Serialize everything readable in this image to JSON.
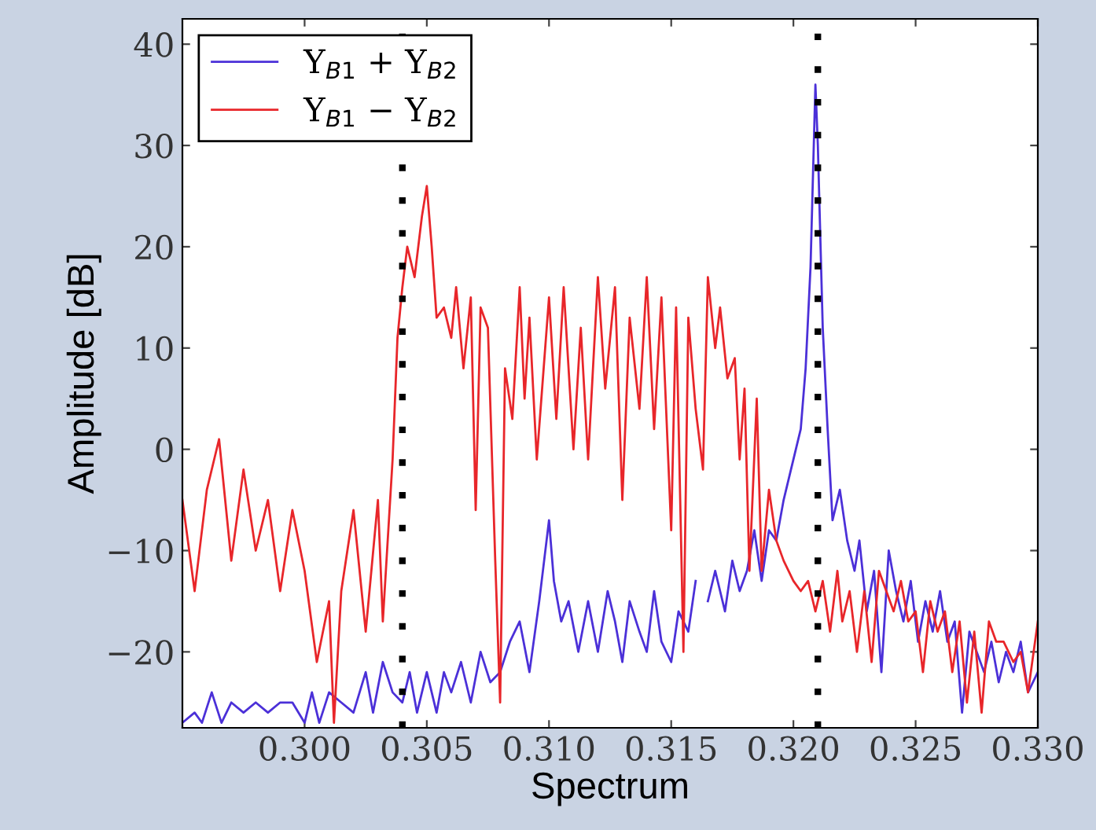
{
  "chart_data": {
    "type": "line",
    "xlabel": "Spectrum",
    "ylabel": "Amplitude [dB]",
    "xlim": [
      0.295,
      0.33
    ],
    "ylim": [
      -27.5,
      42.5
    ],
    "xticks": [
      {
        "value": 0.3,
        "label": "0.300"
      },
      {
        "value": 0.305,
        "label": "0.305"
      },
      {
        "value": 0.31,
        "label": "0.310"
      },
      {
        "value": 0.315,
        "label": "0.315"
      },
      {
        "value": 0.32,
        "label": "0.320"
      },
      {
        "value": 0.325,
        "label": "0.325"
      },
      {
        "value": 0.33,
        "label": "0.330"
      }
    ],
    "yticks": [
      {
        "value": -20,
        "label": "−20"
      },
      {
        "value": -10,
        "label": "−10"
      },
      0,
      10,
      20,
      30,
      40
    ],
    "legend": "top left",
    "grid": false,
    "ref_lines": [
      {
        "axis": "x",
        "value": 0.304,
        "color": "#000000",
        "line_style": "dotted"
      },
      {
        "axis": "x",
        "value": 0.321,
        "color": "#000000",
        "line_style": "dotted"
      }
    ],
    "series": [
      {
        "name": "Y$_{B1}$ + Y$_{B2}$",
        "color": "#4b30d8",
        "x": [
          0.295,
          0.2955,
          0.2958,
          0.2962,
          0.2966,
          0.297,
          0.2975,
          0.298,
          0.2985,
          0.299,
          0.2995,
          0.3,
          0.3003,
          0.3006,
          0.301,
          0.3015,
          0.302,
          0.3025,
          0.3028,
          0.3032,
          0.3036,
          0.304,
          0.3043,
          0.3046,
          0.305,
          0.3054,
          0.3057,
          0.306,
          0.3064,
          0.3068,
          0.3072,
          0.3076,
          0.308,
          0.3084,
          0.3088,
          0.3092,
          0.3096,
          0.3098,
          0.31,
          0.3102,
          0.3105,
          0.3108,
          0.3112,
          0.3116,
          0.312,
          0.3124,
          0.3127,
          0.313,
          0.3133,
          0.3137,
          0.314,
          0.3143,
          0.3146,
          0.315,
          0.3153,
          0.3157,
          0.316,
          0.3163,
          0.3165,
          0.3168,
          0.3172,
          0.3175,
          0.3178,
          0.3181,
          0.3184,
          0.3187,
          0.319,
          0.3193,
          0.3196,
          0.3199,
          0.3201,
          0.3203,
          0.3205,
          0.3207,
          0.3209,
          0.321,
          0.3212,
          0.3214,
          0.3216,
          0.3219,
          0.3222,
          0.3225,
          0.3227,
          0.323,
          0.3233,
          0.3236,
          0.3239,
          0.3242,
          0.3245,
          0.3248,
          0.3251,
          0.3254,
          0.3257,
          0.326,
          0.3263,
          0.3266,
          0.3269,
          0.3272,
          0.3275,
          0.3278,
          0.3281,
          0.3284,
          0.3287,
          0.329,
          0.3293,
          0.3296,
          0.33
        ],
        "values": [
          -27,
          -26,
          -27,
          -24,
          -27,
          -25,
          -26,
          -25,
          -26,
          -25,
          -25,
          -27,
          -24,
          -27,
          -24,
          -25,
          -26,
          -22,
          -26,
          -21,
          -24,
          -25,
          -22,
          -26,
          -22,
          -26,
          -22,
          -24,
          -21,
          -25,
          -20,
          -23,
          -22,
          -19,
          -17,
          -22,
          -15,
          -11,
          -7,
          -13,
          -17,
          -15,
          -20,
          -15,
          -20,
          -14,
          -17,
          -21,
          -15,
          -18,
          -20,
          -14,
          -19,
          -21,
          -16,
          -18,
          -13,
          null,
          -15,
          -12,
          -16,
          -11,
          -14,
          -12,
          -8,
          -13,
          -8,
          -9,
          -5,
          -2,
          0,
          2,
          8,
          18,
          36,
          30,
          12,
          2,
          -7,
          -4,
          -9,
          -12,
          -9,
          -16,
          -12,
          -22,
          -10,
          -14,
          -17,
          -13,
          -19,
          -15,
          -18,
          -14,
          -19,
          -17,
          -26,
          -18,
          -20,
          -22,
          -19,
          -23,
          -20,
          -22,
          -19,
          -24,
          -22
        ]
      },
      {
        "name": "Y$_{B1}$ − Y$_{B2}$",
        "color": "#e8262a",
        "x": [
          0.295,
          0.2955,
          0.296,
          0.2965,
          0.297,
          0.2975,
          0.298,
          0.2985,
          0.299,
          0.2995,
          0.3,
          0.3005,
          0.301,
          0.3012,
          0.3015,
          0.302,
          0.3025,
          0.303,
          0.3032,
          0.3036,
          0.3038,
          0.304,
          0.3042,
          0.3045,
          0.3048,
          0.305,
          0.3052,
          0.3054,
          0.3057,
          0.306,
          0.3062,
          0.3065,
          0.3068,
          0.307,
          0.3072,
          0.3075,
          0.3078,
          0.308,
          0.3082,
          0.3085,
          0.3088,
          0.309,
          0.3092,
          0.3095,
          0.31,
          0.3103,
          0.3106,
          0.311,
          0.3113,
          0.3116,
          0.312,
          0.3123,
          0.3127,
          0.313,
          0.3133,
          0.3137,
          0.314,
          0.3143,
          0.3146,
          0.315,
          0.3152,
          0.3155,
          0.3157,
          0.316,
          0.3163,
          0.3165,
          0.3168,
          0.317,
          0.3173,
          0.3176,
          0.3178,
          0.318,
          0.3182,
          0.3185,
          0.3187,
          0.319,
          0.3193,
          0.3196,
          0.32,
          0.3203,
          0.3206,
          0.3209,
          0.3212,
          0.3215,
          0.3218,
          0.322,
          0.3223,
          0.3226,
          0.3229,
          0.3232,
          0.3235,
          0.3238,
          0.3241,
          0.3244,
          0.3247,
          0.325,
          0.3253,
          0.3256,
          0.3259,
          0.3262,
          0.3265,
          0.3268,
          0.3271,
          0.3274,
          0.3277,
          0.328,
          0.3283,
          0.3286,
          0.329,
          0.3293,
          0.3296,
          0.33
        ],
        "values": [
          -5,
          -14,
          -4,
          1,
          -11,
          -2,
          -10,
          -5,
          -14,
          -6,
          -12,
          -21,
          -15,
          -27,
          -14,
          -6,
          -18,
          -5,
          -17,
          -1,
          11,
          16,
          20,
          17,
          23,
          26,
          20,
          13,
          14,
          11,
          16,
          8,
          15,
          -6,
          14,
          12,
          -11,
          -25,
          8,
          3,
          16,
          5,
          13,
          -1,
          15,
          3,
          16,
          0,
          12,
          -1,
          17,
          6,
          16,
          -5,
          13,
          4,
          17,
          2,
          15,
          -8,
          14,
          -20,
          13,
          4,
          -2,
          17,
          10,
          14,
          7,
          9,
          -1,
          6,
          -12,
          5,
          -12,
          -4,
          -9,
          -11,
          -13,
          -14,
          -13,
          -16,
          -13,
          -18,
          -12,
          -17,
          -14,
          -20,
          -14,
          -21,
          -12,
          -14,
          -16,
          -13,
          -17,
          -16,
          -22,
          -15,
          -18,
          -16,
          -22,
          -17,
          -25,
          -18,
          -26,
          -17,
          -19,
          -19,
          -21,
          -20,
          -24,
          -17
        ]
      }
    ]
  }
}
